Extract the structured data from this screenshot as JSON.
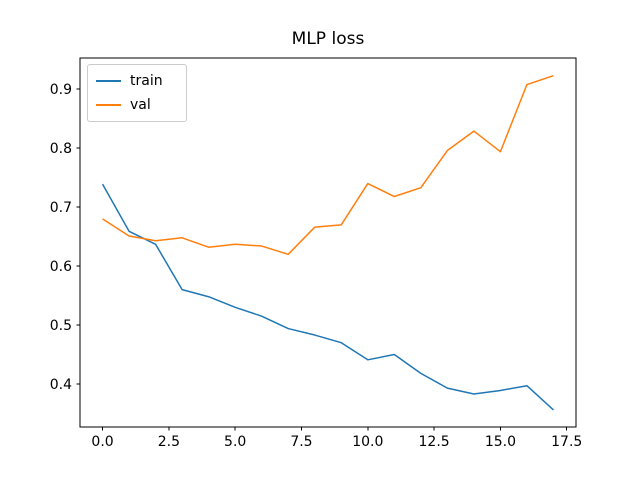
{
  "figure": {
    "background": "#ffffff"
  },
  "chart_data": {
    "type": "line",
    "title": "MLP loss",
    "xlabel": "",
    "ylabel": "",
    "x": [
      0,
      1,
      2,
      3,
      4,
      5,
      6,
      7,
      8,
      9,
      10,
      11,
      12,
      13,
      14,
      15,
      16,
      17
    ],
    "series": [
      {
        "name": "train",
        "color": "#1f77b4",
        "values": [
          0.739,
          0.659,
          0.637,
          0.56,
          0.548,
          0.53,
          0.515,
          0.494,
          0.483,
          0.47,
          0.441,
          0.45,
          0.418,
          0.393,
          0.383,
          0.389,
          0.397,
          0.356
        ]
      },
      {
        "name": "val",
        "color": "#ff7f0e",
        "values": [
          0.68,
          0.651,
          0.643,
          0.648,
          0.632,
          0.637,
          0.634,
          0.62,
          0.666,
          0.67,
          0.74,
          0.718,
          0.733,
          0.796,
          0.829,
          0.794,
          0.908,
          0.923
        ]
      }
    ],
    "xlim": [
      -0.85,
      17.85
    ],
    "ylim": [
      0.327,
      0.953
    ],
    "xticks": {
      "values": [
        0,
        2.5,
        5,
        7.5,
        10,
        12.5,
        15,
        17.5
      ],
      "labels": [
        "0.0",
        "2.5",
        "5.0",
        "7.5",
        "10.0",
        "12.5",
        "15.0",
        "17.5"
      ]
    },
    "yticks": {
      "values": [
        0.4,
        0.5,
        0.6,
        0.7,
        0.8,
        0.9
      ],
      "labels": [
        "0.4",
        "0.5",
        "0.6",
        "0.7",
        "0.8",
        "0.9"
      ]
    },
    "grid": false,
    "legend": {
      "position": "upper left",
      "entries": [
        "train",
        "val"
      ]
    },
    "line_width": 1.5,
    "spine_color": "#000000"
  }
}
